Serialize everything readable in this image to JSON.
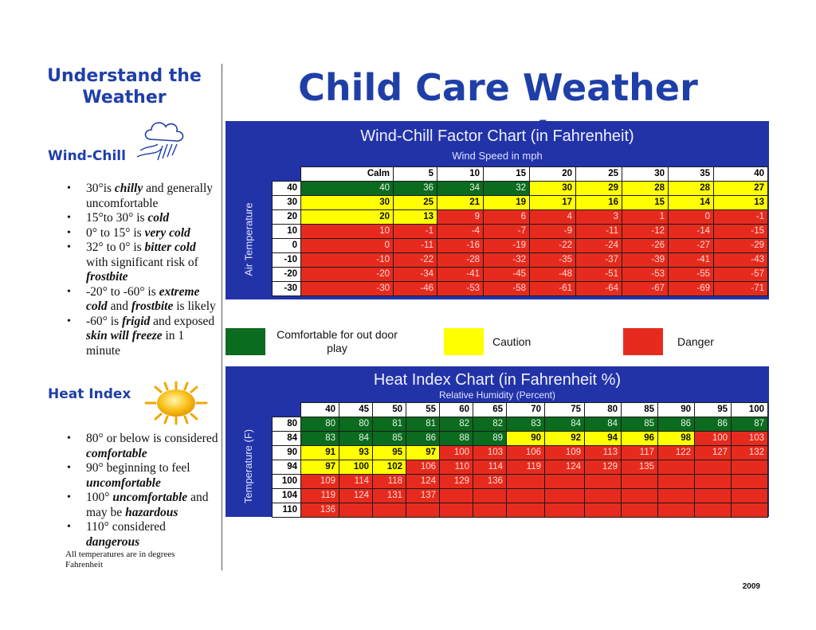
{
  "page": {
    "left_title": [
      "Understand the",
      "Weather"
    ],
    "main_title": "Child Care Weather Watch",
    "year": "2009",
    "footnote": "All temperatures are in degrees Fahrenheit"
  },
  "colors": {
    "comfortable": "#0b6b1f",
    "caution": "#ffff00",
    "danger": "#e62b1e",
    "panel": "#2233a8",
    "title": "#1f3fa8"
  },
  "wind_chill_section": {
    "heading": "Wind-Chill",
    "icon": "cloud-wind-icon",
    "bullets": [
      {
        "pre": "30°is ",
        "em": "chilly",
        "post": " and generally uncomfortable"
      },
      {
        "pre": "15°to 30° is ",
        "em": "cold",
        "post": ""
      },
      {
        "pre": "0° to 15° is ",
        "em": "very cold",
        "post": ""
      },
      {
        "pre": "32° to 0° is ",
        "em": "bitter cold",
        "post": " with significant risk of ",
        "em2": "frostbite"
      },
      {
        "pre": "-20° to -60° is ",
        "em": "extreme cold",
        "post": " and ",
        "em2": "frostbite",
        "post2": " is likely"
      },
      {
        "pre": "-60° is ",
        "em": "frigid",
        "post": " and exposed ",
        "em2": "skin will freeze",
        "post2": " in 1 minute"
      }
    ]
  },
  "heat_index_section": {
    "heading": "Heat Index",
    "icon": "sun-icon",
    "bullets": [
      {
        "pre": "80° or below is considered ",
        "em": "comfortable",
        "post": ""
      },
      {
        "pre": "90° beginning to feel ",
        "em": "uncomfortable",
        "post": ""
      },
      {
        "pre": "100° ",
        "em": "uncomfortable",
        "post": " and may be ",
        "em2": "hazardous"
      },
      {
        "pre": "110° considered ",
        "em": "dangerous",
        "post": ""
      }
    ]
  },
  "wind_chill_chart": {
    "title": "Wind-Chill Factor Chart (in Fahrenheit)",
    "col_axis_label": "Wind Speed in mph",
    "row_axis_label": "Air Temperature",
    "columns": [
      "Calm",
      "5",
      "10",
      "15",
      "20",
      "25",
      "30",
      "35",
      "40"
    ],
    "rows": [
      {
        "label": "40",
        "cells": [
          [
            "40",
            "g"
          ],
          [
            "36",
            "g"
          ],
          [
            "34",
            "g"
          ],
          [
            "32",
            "g"
          ],
          [
            "30",
            "y"
          ],
          [
            "29",
            "y"
          ],
          [
            "28",
            "y"
          ],
          [
            "28",
            "y"
          ],
          [
            "27",
            "y"
          ]
        ]
      },
      {
        "label": "30",
        "cells": [
          [
            "30",
            "y"
          ],
          [
            "25",
            "y"
          ],
          [
            "21",
            "y"
          ],
          [
            "19",
            "y"
          ],
          [
            "17",
            "y"
          ],
          [
            "16",
            "y"
          ],
          [
            "15",
            "y"
          ],
          [
            "14",
            "y"
          ],
          [
            "13",
            "y"
          ]
        ]
      },
      {
        "label": "20",
        "cells": [
          [
            "20",
            "y"
          ],
          [
            "13",
            "y"
          ],
          [
            "9",
            "r"
          ],
          [
            "6",
            "r"
          ],
          [
            "4",
            "r"
          ],
          [
            "3",
            "r"
          ],
          [
            "1",
            "r"
          ],
          [
            "0",
            "r"
          ],
          [
            "-1",
            "r"
          ]
        ]
      },
      {
        "label": "10",
        "cells": [
          [
            "10",
            "r"
          ],
          [
            "-1",
            "r"
          ],
          [
            "-4",
            "r"
          ],
          [
            "-7",
            "r"
          ],
          [
            "-9",
            "r"
          ],
          [
            "-11",
            "r"
          ],
          [
            "-12",
            "r"
          ],
          [
            "-14",
            "r"
          ],
          [
            "-15",
            "r"
          ]
        ]
      },
      {
        "label": "0",
        "cells": [
          [
            "0",
            "r"
          ],
          [
            "-11",
            "r"
          ],
          [
            "-16",
            "r"
          ],
          [
            "-19",
            "r"
          ],
          [
            "-22",
            "r"
          ],
          [
            "-24",
            "r"
          ],
          [
            "-26",
            "r"
          ],
          [
            "-27",
            "r"
          ],
          [
            "-29",
            "r"
          ]
        ]
      },
      {
        "label": "-10",
        "cells": [
          [
            "-10",
            "r"
          ],
          [
            "-22",
            "r"
          ],
          [
            "-28",
            "r"
          ],
          [
            "-32",
            "r"
          ],
          [
            "-35",
            "r"
          ],
          [
            "-37",
            "r"
          ],
          [
            "-39",
            "r"
          ],
          [
            "-41",
            "r"
          ],
          [
            "-43",
            "r"
          ]
        ]
      },
      {
        "label": "-20",
        "cells": [
          [
            "-20",
            "r"
          ],
          [
            "-34",
            "r"
          ],
          [
            "-41",
            "r"
          ],
          [
            "-45",
            "r"
          ],
          [
            "-48",
            "r"
          ],
          [
            "-51",
            "r"
          ],
          [
            "-53",
            "r"
          ],
          [
            "-55",
            "r"
          ],
          [
            "-57",
            "r"
          ]
        ]
      },
      {
        "label": "-30",
        "cells": [
          [
            "-30",
            "r"
          ],
          [
            "-46",
            "r"
          ],
          [
            "-53",
            "r"
          ],
          [
            "-58",
            "r"
          ],
          [
            "-61",
            "r"
          ],
          [
            "-64",
            "r"
          ],
          [
            "-67",
            "r"
          ],
          [
            "-69",
            "r"
          ],
          [
            "-71",
            "r"
          ]
        ]
      }
    ]
  },
  "legend": {
    "comfortable": "Comfortable for out door play",
    "caution": "Caution",
    "danger": "Danger"
  },
  "heat_index_chart": {
    "title": "Heat Index Chart (in Fahrenheit %)",
    "col_axis_label": "Relative Humidity (Percent)",
    "row_axis_label": "Temperature (F)",
    "columns": [
      "40",
      "45",
      "50",
      "55",
      "60",
      "65",
      "70",
      "75",
      "80",
      "85",
      "90",
      "95",
      "100"
    ],
    "rows": [
      {
        "label": "80",
        "cells": [
          [
            "80",
            "g"
          ],
          [
            "80",
            "g"
          ],
          [
            "81",
            "g"
          ],
          [
            "81",
            "g"
          ],
          [
            "82",
            "g"
          ],
          [
            "82",
            "g"
          ],
          [
            "83",
            "g"
          ],
          [
            "84",
            "g"
          ],
          [
            "84",
            "g"
          ],
          [
            "85",
            "g"
          ],
          [
            "86",
            "g"
          ],
          [
            "86",
            "g"
          ],
          [
            "87",
            "g"
          ]
        ]
      },
      {
        "label": "84",
        "cells": [
          [
            "83",
            "g"
          ],
          [
            "84",
            "g"
          ],
          [
            "85",
            "g"
          ],
          [
            "86",
            "g"
          ],
          [
            "88",
            "g"
          ],
          [
            "89",
            "g"
          ],
          [
            "90",
            "y"
          ],
          [
            "92",
            "y"
          ],
          [
            "94",
            "y"
          ],
          [
            "96",
            "y"
          ],
          [
            "98",
            "y"
          ],
          [
            "100",
            "r"
          ],
          [
            "103",
            "r"
          ]
        ]
      },
      {
        "label": "90",
        "cells": [
          [
            "91",
            "y"
          ],
          [
            "93",
            "y"
          ],
          [
            "95",
            "y"
          ],
          [
            "97",
            "y"
          ],
          [
            "100",
            "r"
          ],
          [
            "103",
            "r"
          ],
          [
            "106",
            "r"
          ],
          [
            "109",
            "r"
          ],
          [
            "113",
            "r"
          ],
          [
            "117",
            "r"
          ],
          [
            "122",
            "r"
          ],
          [
            "127",
            "r"
          ],
          [
            "132",
            "r"
          ]
        ]
      },
      {
        "label": "94",
        "cells": [
          [
            "97",
            "y"
          ],
          [
            "100",
            "y"
          ],
          [
            "102",
            "y"
          ],
          [
            "106",
            "r"
          ],
          [
            "110",
            "r"
          ],
          [
            "114",
            "r"
          ],
          [
            "119",
            "r"
          ],
          [
            "124",
            "r"
          ],
          [
            "129",
            "r"
          ],
          [
            "135",
            "r"
          ],
          [
            "",
            "r"
          ],
          [
            "",
            "r"
          ],
          [
            "",
            "r"
          ]
        ]
      },
      {
        "label": "100",
        "cells": [
          [
            "109",
            "r"
          ],
          [
            "114",
            "r"
          ],
          [
            "118",
            "r"
          ],
          [
            "124",
            "r"
          ],
          [
            "129",
            "r"
          ],
          [
            "136",
            "r"
          ],
          [
            "",
            "r"
          ],
          [
            "",
            "r"
          ],
          [
            "",
            "r"
          ],
          [
            "",
            "r"
          ],
          [
            "",
            "r"
          ],
          [
            "",
            "r"
          ],
          [
            "",
            "r"
          ]
        ]
      },
      {
        "label": "104",
        "cells": [
          [
            "119",
            "r"
          ],
          [
            "124",
            "r"
          ],
          [
            "131",
            "r"
          ],
          [
            "137",
            "r"
          ],
          [
            "",
            "r"
          ],
          [
            "",
            "r"
          ],
          [
            "",
            "r"
          ],
          [
            "",
            "r"
          ],
          [
            "",
            "r"
          ],
          [
            "",
            "r"
          ],
          [
            "",
            "r"
          ],
          [
            "",
            "r"
          ],
          [
            "",
            "r"
          ]
        ]
      },
      {
        "label": "110",
        "cells": [
          [
            "136",
            "r"
          ],
          [
            "",
            "r"
          ],
          [
            "",
            "r"
          ],
          [
            "",
            "r"
          ],
          [
            "",
            "r"
          ],
          [
            "",
            "r"
          ],
          [
            "",
            "r"
          ],
          [
            "",
            "r"
          ],
          [
            "",
            "r"
          ],
          [
            "",
            "r"
          ],
          [
            "",
            "r"
          ],
          [
            "",
            "r"
          ],
          [
            "",
            "r"
          ]
        ]
      }
    ]
  }
}
